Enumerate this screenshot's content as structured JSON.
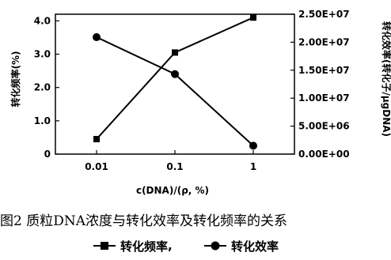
{
  "chart_data": {
    "type": "line",
    "categories": [
      "0.01",
      "0.1",
      "1"
    ],
    "xlabel": "c(DNA)/(ρ, %)",
    "ylabel_left": "转化频率(%)",
    "ylabel_right": "转化效率(转化子/μgDNA)",
    "y_left": {
      "ticks": [
        "0",
        "1.0",
        "2.0",
        "3.0",
        "4.0"
      ],
      "lim": [
        0,
        4.2
      ]
    },
    "y_right": {
      "ticks": [
        "0.00E+00",
        "5.00E+06",
        "1.00E+07",
        "1.50E+07",
        "2.00E+07",
        "2.50E+07"
      ],
      "lim": [
        0,
        25000000
      ]
    },
    "series": [
      {
        "name": "转化频率",
        "axis": "left",
        "marker": "square",
        "values": [
          0.45,
          3.05,
          4.1
        ]
      },
      {
        "name": "转化效率",
        "axis": "right",
        "marker": "circle",
        "values": [
          20900000,
          14300000,
          1500000
        ]
      }
    ],
    "grid": false
  },
  "caption": "图2 质粒DNA浓度与转化效率及转化频率的关系",
  "legend": {
    "separator": ","
  }
}
